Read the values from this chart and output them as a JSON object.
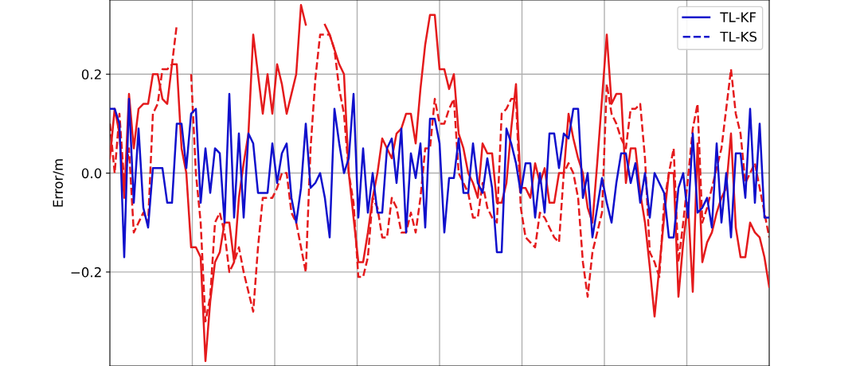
{
  "chart_data": {
    "type": "line",
    "ylabel": "Error/m",
    "categories": [
      null,
      null,
      null,
      null,
      null,
      null,
      null,
      null,
      null,
      null,
      null,
      null,
      null,
      null,
      null,
      null,
      null,
      null,
      null,
      null,
      null,
      null,
      null,
      null,
      null,
      null,
      null,
      null,
      null,
      null,
      null,
      null,
      null,
      null,
      null,
      null,
      null,
      null,
      null,
      null,
      null,
      null,
      null,
      null,
      null,
      null,
      null,
      null,
      null,
      null,
      null,
      null,
      null,
      null,
      null,
      null,
      null,
      null,
      null,
      null,
      null,
      null,
      null,
      null,
      null,
      null,
      null,
      null,
      null,
      null,
      null,
      null,
      null,
      null,
      null,
      null,
      null,
      null,
      null,
      null,
      null,
      null,
      null,
      null,
      null,
      null,
      null,
      null,
      null,
      null,
      null,
      null,
      null,
      null,
      null,
      null,
      null,
      null,
      null,
      null,
      null,
      null,
      null,
      null,
      null,
      null,
      null,
      null,
      null,
      null,
      null,
      null,
      null,
      null,
      null,
      null,
      null,
      null,
      null,
      null,
      null,
      null,
      null,
      null,
      null,
      null,
      null,
      null,
      null,
      null,
      null,
      null,
      null,
      null,
      null,
      null,
      null,
      null,
      null
    ],
    "ylim": [
      -0.39,
      0.35
    ],
    "yticks": [
      {
        "value": -0.2,
        "label": "−0.2"
      },
      {
        "value": 0.0,
        "label": "0.0"
      },
      {
        "value": 0.2,
        "label": "0.2"
      }
    ],
    "grid": true,
    "legend": "top right",
    "marker": "none",
    "series": [
      {
        "color": "#e41a1c",
        "line_style": "solid",
        "values": [
          0.03,
          0.13,
          0.08,
          -0.05,
          0.16,
          0.05,
          0.13,
          0.14,
          0.14,
          0.2,
          0.2,
          0.15,
          0.14,
          0.22,
          0.22,
          0.05,
          0.0,
          -0.15,
          -0.15,
          -0.17,
          -0.38,
          -0.26,
          -0.18,
          -0.16,
          -0.1,
          -0.1,
          -0.18,
          -0.05,
          0.02,
          0.08,
          0.28,
          0.2,
          0.12,
          0.2,
          0.12,
          0.22,
          0.18,
          0.12,
          0.16,
          0.2,
          0.34,
          0.3,
          null,
          null,
          null,
          0.3,
          0.28,
          0.25,
          0.22,
          0.2,
          0.0,
          -0.09,
          -0.18,
          -0.18,
          -0.12,
          -0.05,
          0.0,
          0.07,
          0.05,
          0.03,
          0.08,
          0.09,
          0.12,
          0.12,
          0.06,
          0.17,
          0.26,
          0.32,
          0.32,
          0.21,
          0.21,
          0.17,
          0.2,
          0.08,
          0.05,
          0.0,
          -0.02,
          -0.05,
          0.06,
          0.04,
          0.04,
          -0.06,
          -0.06,
          -0.02,
          0.09,
          0.18,
          -0.03,
          -0.03,
          -0.05,
          0.02,
          -0.02,
          0.01,
          -0.06,
          -0.06,
          0.0,
          0.0,
          0.12,
          0.07,
          0.03,
          0.0,
          -0.07,
          -0.1,
          0.02,
          0.15,
          0.28,
          0.14,
          0.16,
          0.16,
          -0.02,
          0.05,
          0.05,
          -0.04,
          -0.1,
          -0.19,
          -0.29,
          -0.19,
          -0.09,
          0.0,
          0.0,
          -0.25,
          -0.14,
          -0.06,
          -0.24,
          0.06,
          -0.18,
          -0.14,
          -0.12,
          -0.08,
          -0.05,
          -0.03,
          0.08,
          -0.11,
          -0.17,
          -0.17,
          -0.1,
          -0.12,
          -0.13,
          -0.17,
          -0.23
        ]
      },
      {
        "color": "#e41a1c",
        "line_style": "dashed",
        "values": [
          0.1,
          0.0,
          0.12,
          -0.02,
          0.05,
          -0.12,
          -0.1,
          -0.08,
          -0.1,
          0.12,
          0.14,
          0.21,
          0.21,
          0.22,
          0.3,
          null,
          null,
          0.2,
          0.0,
          -0.1,
          -0.3,
          -0.25,
          -0.1,
          -0.08,
          -0.12,
          -0.2,
          -0.18,
          -0.15,
          -0.2,
          -0.24,
          -0.28,
          -0.15,
          -0.05,
          -0.05,
          -0.05,
          -0.03,
          0.0,
          0.0,
          -0.08,
          -0.1,
          -0.15,
          -0.2,
          0.05,
          0.19,
          0.28,
          0.28,
          0.28,
          0.25,
          0.17,
          0.12,
          0.0,
          -0.06,
          -0.21,
          -0.21,
          -0.17,
          -0.05,
          -0.07,
          -0.13,
          -0.13,
          -0.05,
          -0.07,
          -0.12,
          -0.12,
          -0.08,
          -0.12,
          -0.05,
          0.05,
          0.05,
          0.15,
          0.1,
          0.1,
          0.13,
          0.15,
          0.0,
          -0.02,
          -0.04,
          -0.09,
          -0.09,
          -0.02,
          -0.07,
          -0.09,
          -0.1,
          0.12,
          0.13,
          0.15,
          0.15,
          -0.07,
          -0.13,
          -0.14,
          -0.15,
          -0.08,
          -0.09,
          -0.11,
          -0.13,
          -0.14,
          0.0,
          0.02,
          0.0,
          -0.05,
          -0.18,
          -0.25,
          -0.16,
          -0.12,
          -0.08,
          0.18,
          0.12,
          0.1,
          0.07,
          0.05,
          0.13,
          0.13,
          0.14,
          0.03,
          -0.16,
          -0.18,
          -0.21,
          -0.06,
          0.0,
          0.05,
          -0.18,
          -0.1,
          -0.01,
          0.09,
          0.14,
          -0.1,
          -0.07,
          -0.03,
          0.01,
          0.05,
          0.13,
          0.21,
          0.12,
          0.08,
          -0.02,
          0.0,
          0.02,
          -0.03,
          -0.08,
          -0.13
        ]
      },
      {
        "name": "TL-KF",
        "color": "#1010cc",
        "line_style": "solid",
        "values": [
          0.13,
          0.13,
          0.1,
          -0.17,
          0.15,
          -0.06,
          0.09,
          -0.07,
          -0.11,
          0.01,
          0.01,
          0.01,
          -0.06,
          -0.06,
          0.1,
          0.1,
          0.01,
          0.12,
          0.13,
          -0.06,
          0.05,
          -0.04,
          0.05,
          0.04,
          -0.1,
          0.16,
          -0.09,
          0.08,
          -0.09,
          0.08,
          0.06,
          -0.04,
          -0.04,
          -0.04,
          0.06,
          -0.02,
          0.04,
          0.06,
          -0.05,
          -0.1,
          -0.03,
          0.1,
          -0.03,
          -0.02,
          0.0,
          -0.05,
          -0.13,
          0.13,
          0.06,
          0.0,
          0.03,
          0.16,
          -0.09,
          0.05,
          -0.08,
          0.0,
          -0.08,
          -0.08,
          0.05,
          0.07,
          -0.02,
          0.09,
          -0.12,
          0.04,
          -0.01,
          0.06,
          -0.11,
          0.11,
          0.11,
          0.06,
          -0.12,
          -0.01,
          -0.01,
          0.07,
          -0.04,
          -0.04,
          0.06,
          -0.02,
          -0.04,
          0.03,
          -0.03,
          -0.16,
          -0.16,
          0.09,
          0.06,
          0.02,
          -0.04,
          0.02,
          0.02,
          -0.09,
          0.0,
          -0.08,
          0.08,
          0.08,
          0.01,
          0.08,
          0.07,
          0.13,
          0.13,
          -0.05,
          0.0,
          -0.13,
          -0.07,
          -0.01,
          -0.06,
          -0.1,
          -0.02,
          0.04,
          0.04,
          -0.02,
          0.02,
          -0.06,
          0.0,
          -0.09,
          0.0,
          -0.02,
          -0.04,
          -0.13,
          -0.13,
          -0.03,
          0.0,
          -0.09,
          0.08,
          -0.08,
          -0.07,
          -0.05,
          -0.11,
          0.06,
          -0.1,
          0.0,
          -0.13,
          0.04,
          0.04,
          -0.05,
          0.13,
          -0.06,
          0.1,
          -0.09,
          -0.09
        ]
      },
      {
        "name": "TL-KS",
        "color": "#1010cc",
        "line_style": "dashed",
        "values": [
          null,
          null,
          null,
          null,
          null,
          null,
          null,
          null,
          null,
          null,
          null,
          null,
          null,
          null,
          null,
          null,
          null,
          null,
          null,
          null,
          null,
          null,
          null,
          null,
          null,
          null,
          null,
          null,
          null,
          null,
          null,
          null,
          null,
          null,
          null,
          null,
          null,
          null,
          null,
          null,
          null,
          null,
          null,
          null,
          null,
          null,
          null,
          null,
          null,
          null,
          null,
          null,
          null,
          null,
          null,
          null,
          null,
          null,
          null,
          null,
          null,
          null,
          null,
          null,
          null,
          null,
          null,
          null,
          null,
          null,
          null,
          null,
          null,
          null,
          null,
          null,
          null,
          null,
          null,
          null,
          null,
          null,
          null,
          null,
          null,
          null,
          null,
          null,
          null,
          null,
          null,
          null,
          null,
          null,
          null,
          null,
          null,
          null,
          null,
          null,
          null,
          null,
          null,
          null,
          null,
          null,
          null,
          null,
          null,
          null,
          null,
          null,
          null,
          null,
          null,
          null,
          null,
          null,
          null,
          null,
          null,
          null,
          null,
          null,
          null,
          null,
          null,
          null,
          null,
          null,
          null,
          null,
          null,
          null,
          null,
          null,
          null,
          null,
          null
        ]
      }
    ]
  }
}
